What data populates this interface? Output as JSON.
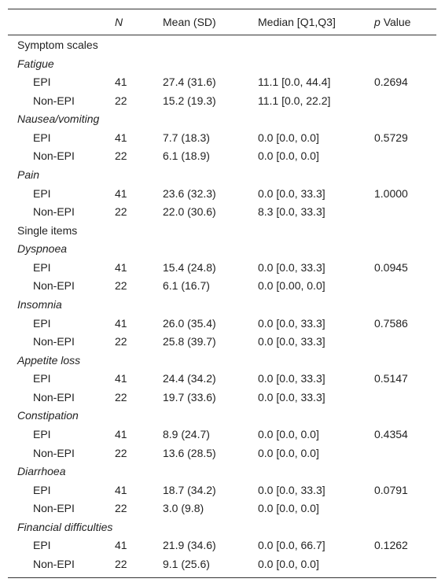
{
  "header": {
    "n": "N",
    "mean": "Mean (SD)",
    "median": "Median [Q1,Q3]",
    "p_italic": "p",
    "p_rest": "Value"
  },
  "sections": [
    {
      "title": "Symptom scales",
      "groups": [
        {
          "name": "Fatigue",
          "rows": [
            [
              "EPI",
              "41",
              "27.4 (31.6)",
              "11.1 [0.0, 44.4]",
              "0.2694"
            ],
            [
              "Non-EPI",
              "22",
              "15.2 (19.3)",
              "11.1 [0.0, 22.2]"
            ]
          ]
        },
        {
          "name": "Nausea/vomiting",
          "rows": [
            [
              "EPI",
              "41",
              "7.7 (18.3)",
              "0.0 [0.0, 0.0]",
              "0.5729"
            ],
            [
              "Non-EPI",
              "22",
              "6.1 (18.9)",
              "0.0 [0.0, 0.0]"
            ]
          ]
        },
        {
          "name": "Pain",
          "rows": [
            [
              "EPI",
              "41",
              "23.6 (32.3)",
              "0.0 [0.0, 33.3]",
              "1.0000"
            ],
            [
              "Non-EPI",
              "22",
              "22.0 (30.6)",
              "8.3 [0.0, 33.3]"
            ]
          ]
        }
      ]
    },
    {
      "title": "Single items",
      "groups": [
        {
          "name": "Dyspnoea",
          "rows": [
            [
              "EPI",
              "41",
              "15.4 (24.8)",
              "0.0 [0.0, 33.3]",
              "0.0945"
            ],
            [
              "Non-EPI",
              "22",
              "6.1 (16.7)",
              "0.0 [0.00, 0.0]"
            ]
          ]
        },
        {
          "name": "Insomnia",
          "rows": [
            [
              "EPI",
              "41",
              "26.0 (35.4)",
              "0.0 [0.0, 33.3]",
              "0.7586"
            ],
            [
              "Non-EPI",
              "22",
              "25.8 (39.7)",
              "0.0 [0.0, 33.3]"
            ]
          ]
        },
        {
          "name": "Appetite loss",
          "rows": [
            [
              "EPI",
              "41",
              "24.4 (34.2)",
              "0.0 [0.0, 33.3]",
              "0.5147"
            ],
            [
              "Non-EPI",
              "22",
              "19.7 (33.6)",
              "0.0 [0.0, 33.3]"
            ]
          ]
        },
        {
          "name": "Constipation",
          "rows": [
            [
              "EPI",
              "41",
              "8.9 (24.7)",
              "0.0 [0.0, 0.0]",
              "0.4354"
            ],
            [
              "Non-EPI",
              "22",
              "13.6 (28.5)",
              "0.0 [0.0, 0.0]"
            ]
          ]
        },
        {
          "name": "Diarrhoea",
          "rows": [
            [
              "EPI",
              "41",
              "18.7 (34.2)",
              "0.0 [0.0, 33.3]",
              "0.0791"
            ],
            [
              "Non-EPI",
              "22",
              "3.0 (9.8)",
              "0.0 [0.0, 0.0]"
            ]
          ]
        },
        {
          "name": "Financial difficulties",
          "rows": [
            [
              "EPI",
              "41",
              "21.9 (34.6)",
              "0.0 [0.0, 66.7]",
              "0.1262"
            ],
            [
              "Non-EPI",
              "22",
              "9.1 (25.6)",
              "0.0 [0.0, 0.0]"
            ]
          ]
        }
      ]
    }
  ]
}
